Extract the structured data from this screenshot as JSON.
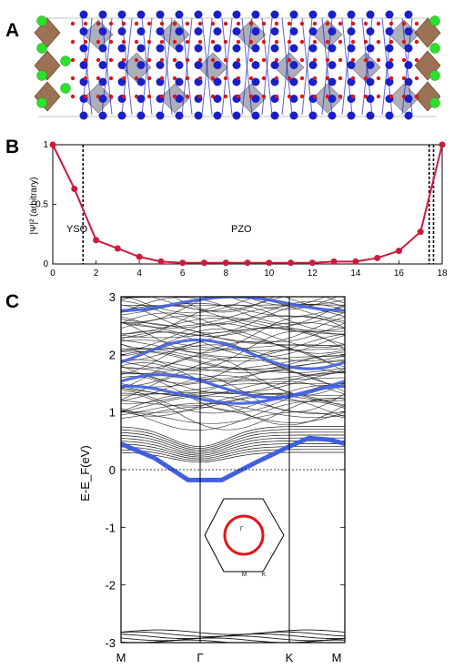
{
  "figure": {
    "panel_labels": [
      "A",
      "B",
      "C"
    ]
  },
  "colors": {
    "blue_atom": "#1a1fc8",
    "green_atom": "#2ee02e",
    "red_atom": "#d81818",
    "octa_gray": "#9a9aa8",
    "octa_brown": "#8a5a36",
    "curve_red": "#cc1b3c",
    "band_blue": "#4060e0",
    "band_black": "#1a1a1a"
  },
  "chart_data": [
    {
      "type": "line",
      "panel": "B",
      "ylabel": "|Ψ|² (arbitrary)",
      "xlim": [
        0,
        18
      ],
      "ylim": [
        0,
        1
      ],
      "xticks": [
        "0",
        "2",
        "4",
        "6",
        "8",
        "10",
        "12",
        "14",
        "16",
        "18"
      ],
      "yticks": [
        "0",
        "0.5",
        "1"
      ],
      "annotations": [
        "YSO",
        "PZO"
      ],
      "vlines": [
        1.4,
        17.4,
        17.6
      ],
      "x": [
        0,
        1,
        2,
        3,
        4,
        5,
        6,
        7,
        8,
        9,
        10,
        11,
        12,
        13,
        14,
        15,
        16,
        17,
        18
      ],
      "y": [
        1.0,
        0.63,
        0.2,
        0.13,
        0.06,
        0.02,
        0.01,
        0.01,
        0.01,
        0.01,
        0.01,
        0.01,
        0.01,
        0.02,
        0.02,
        0.05,
        0.11,
        0.27,
        1.0
      ]
    },
    {
      "type": "line",
      "panel": "C",
      "ylabel": "E-E_F(eV)",
      "ylim": [
        -3,
        3
      ],
      "yticks": [
        "3",
        "2",
        "1",
        "0",
        "-1",
        "-2",
        "-3"
      ],
      "kpath": [
        "M",
        "Γ",
        "K",
        "M"
      ],
      "inset": {
        "labels": [
          "Γ",
          "M",
          "K"
        ]
      },
      "series": [
        {
          "k": [
            0,
            0.15,
            0.3,
            0.45,
            0.6,
            0.75,
            0.84,
            0.93,
            1.0
          ],
          "values": [
            0.45,
            0.2,
            -0.18,
            -0.18,
            0.12,
            0.4,
            0.55,
            0.52,
            0.45
          ]
        }
      ]
    }
  ]
}
